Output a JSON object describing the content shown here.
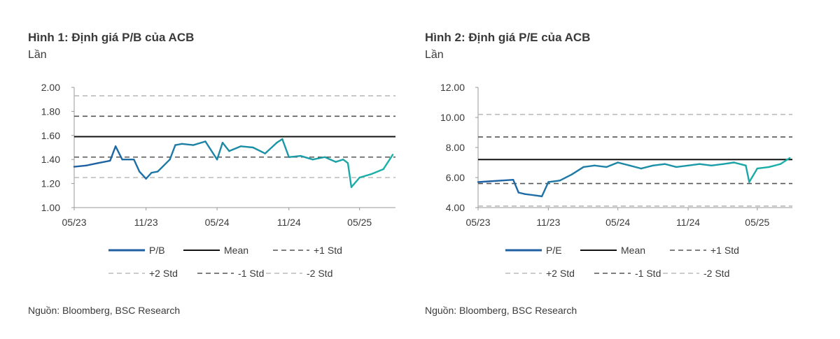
{
  "source_label": "Nguồn: Bloomberg, BSC Research",
  "colors": {
    "series_start": "#1f5fa3",
    "series_end": "#19b3a8",
    "mean": "#111111",
    "std1": "#555555",
    "std2": "#bbbbbb",
    "axis": "#999999"
  },
  "chart_data": [
    {
      "type": "line",
      "title": "Hình 1: Định giá P/B của ACB",
      "ylabel": "Lần",
      "ylim": [
        1.0,
        2.0
      ],
      "y_ticks": [
        "2.00",
        "1.80",
        "1.60",
        "1.40",
        "1.20",
        "1.00"
      ],
      "x_ticks": [
        "05/23",
        "11/23",
        "05/24",
        "11/24",
        "05/25"
      ],
      "x_range": [
        "2023-05",
        "2025-08"
      ],
      "series": [
        {
          "name": "P/B",
          "x": [
            "2023-05",
            "2023-06",
            "2023-07",
            "2023-08",
            "2023-08-15",
            "2023-09",
            "2023-10",
            "2023-10-15",
            "2023-11",
            "2023-11-15",
            "2023-12",
            "2024-01",
            "2024-01-15",
            "2024-02",
            "2024-03",
            "2024-04",
            "2024-05",
            "2024-05-15",
            "2024-06",
            "2024-07",
            "2024-08",
            "2024-09",
            "2024-10",
            "2024-10-15",
            "2024-11",
            "2024-12",
            "2025-01",
            "2025-02",
            "2025-03",
            "2025-03-20",
            "2025-04",
            "2025-04-10",
            "2025-05",
            "2025-06",
            "2025-07",
            "2025-07-25"
          ],
          "values": [
            1.34,
            1.35,
            1.37,
            1.39,
            1.51,
            1.4,
            1.4,
            1.3,
            1.24,
            1.29,
            1.3,
            1.4,
            1.52,
            1.53,
            1.52,
            1.55,
            1.4,
            1.54,
            1.47,
            1.51,
            1.5,
            1.45,
            1.54,
            1.57,
            1.42,
            1.43,
            1.4,
            1.42,
            1.38,
            1.4,
            1.37,
            1.17,
            1.25,
            1.28,
            1.32,
            1.44
          ]
        }
      ],
      "reference_lines": [
        {
          "name": "Mean",
          "value": 1.59
        },
        {
          "name": "+1 Std",
          "value": 1.76
        },
        {
          "name": "+2 Std",
          "value": 1.93
        },
        {
          "name": "-1 Std",
          "value": 1.42
        },
        {
          "name": "-2 Std",
          "value": 1.25
        }
      ],
      "legend": [
        "P/B",
        "Mean",
        "+1 Std",
        "+2 Std",
        "-1 Std",
        "-2 Std"
      ],
      "legend_position": "bottom"
    },
    {
      "type": "line",
      "title": "Hình 2: Định giá P/E của ACB",
      "ylabel": "Lần",
      "ylim": [
        4.0,
        12.0
      ],
      "y_ticks": [
        "12.00",
        "10.00",
        "8.00",
        "6.00",
        "4.00"
      ],
      "x_ticks": [
        "05/23",
        "11/23",
        "05/24",
        "11/24",
        "05/25"
      ],
      "x_range": [
        "2023-05",
        "2025-08"
      ],
      "series": [
        {
          "name": "P/E",
          "x": [
            "2023-05",
            "2023-06",
            "2023-07",
            "2023-08",
            "2023-08-15",
            "2023-09",
            "2023-10",
            "2023-10-15",
            "2023-11",
            "2023-12",
            "2024-01",
            "2024-02",
            "2024-03",
            "2024-04",
            "2024-05",
            "2024-06",
            "2024-07",
            "2024-08",
            "2024-09",
            "2024-10",
            "2024-11",
            "2024-12",
            "2025-01",
            "2025-02",
            "2025-03",
            "2025-04",
            "2025-04-10",
            "2025-05",
            "2025-06",
            "2025-07",
            "2025-07-25"
          ],
          "values": [
            5.7,
            5.75,
            5.8,
            5.85,
            5.0,
            4.9,
            4.8,
            4.75,
            5.7,
            5.8,
            6.2,
            6.7,
            6.8,
            6.7,
            7.0,
            6.8,
            6.6,
            6.8,
            6.9,
            6.7,
            6.8,
            6.9,
            6.8,
            6.9,
            7.0,
            6.8,
            5.7,
            6.6,
            6.7,
            6.9,
            7.3
          ]
        }
      ],
      "reference_lines": [
        {
          "name": "Mean",
          "value": 7.2
        },
        {
          "name": "+1 Std",
          "value": 8.7
        },
        {
          "name": "+2 Std",
          "value": 10.2
        },
        {
          "name": "-1 Std",
          "value": 5.6
        },
        {
          "name": "-2 Std",
          "value": 4.1
        }
      ],
      "legend": [
        "P/E",
        "Mean",
        "+1 Std",
        "+2 Std",
        "-1 Std",
        "-2 Std"
      ],
      "legend_position": "bottom"
    }
  ]
}
